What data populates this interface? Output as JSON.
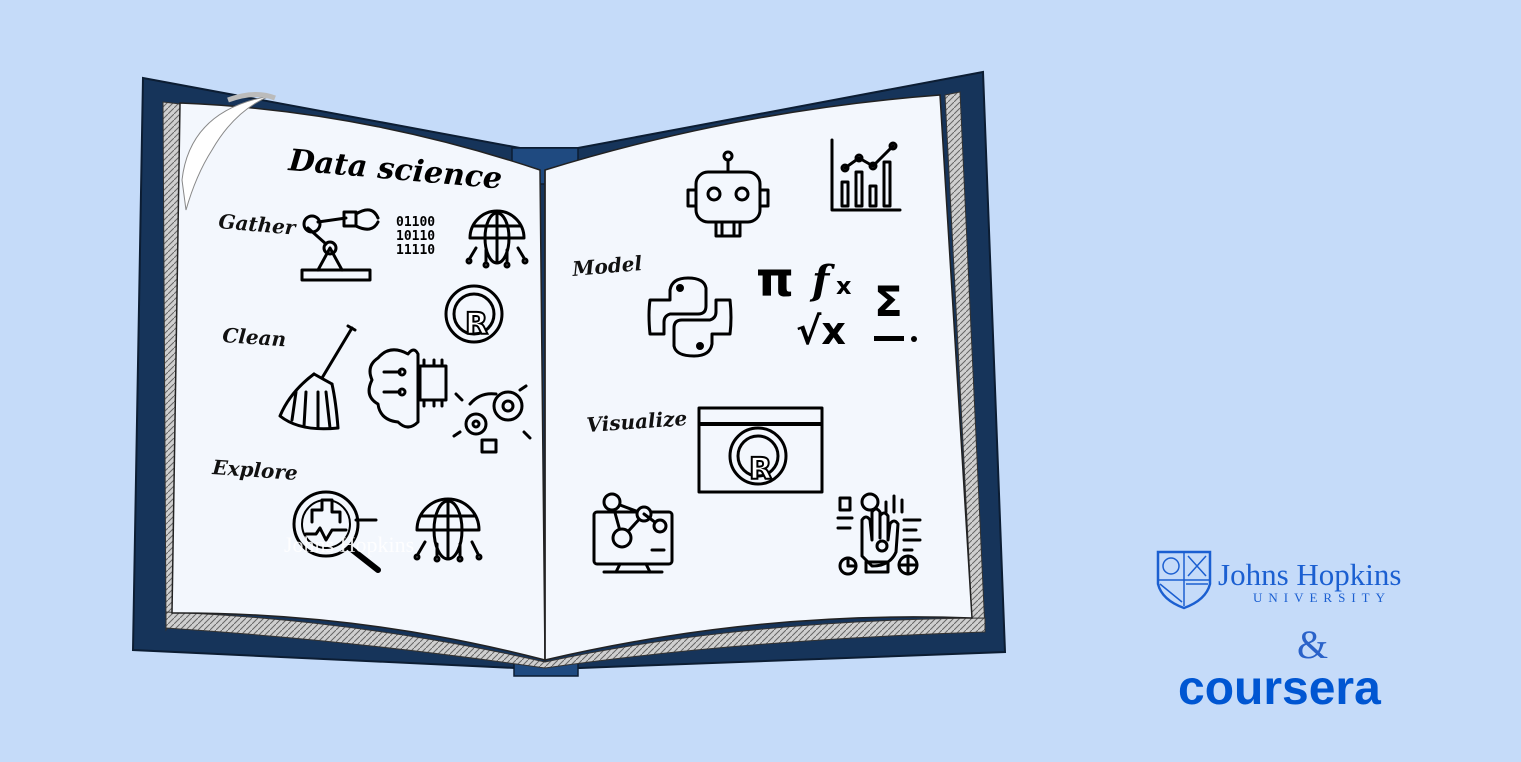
{
  "book": {
    "title": "Data science",
    "left_labels": [
      "Gather",
      "Clean",
      "Explore"
    ],
    "right_labels": [
      "Model",
      "Visualize"
    ],
    "binary_lines": [
      "01100",
      "10110",
      "11110"
    ],
    "r_letter": "R",
    "math_symbols": {
      "pi": "π",
      "fx": "f",
      "fx_sub": "x",
      "sqrt": "√x",
      "sigma": "Σ"
    }
  },
  "watermark": "Johns Hopkins",
  "branding": {
    "jhu_name": "Johns Hopkins",
    "jhu_sub": "UNIVERSITY",
    "ampersand": "&",
    "coursera": "coursera"
  },
  "colors": {
    "background": "#c5dbf9",
    "book_cover": "#16345a",
    "page": "#f3f7fd",
    "brand_blue": "#0056d2"
  }
}
